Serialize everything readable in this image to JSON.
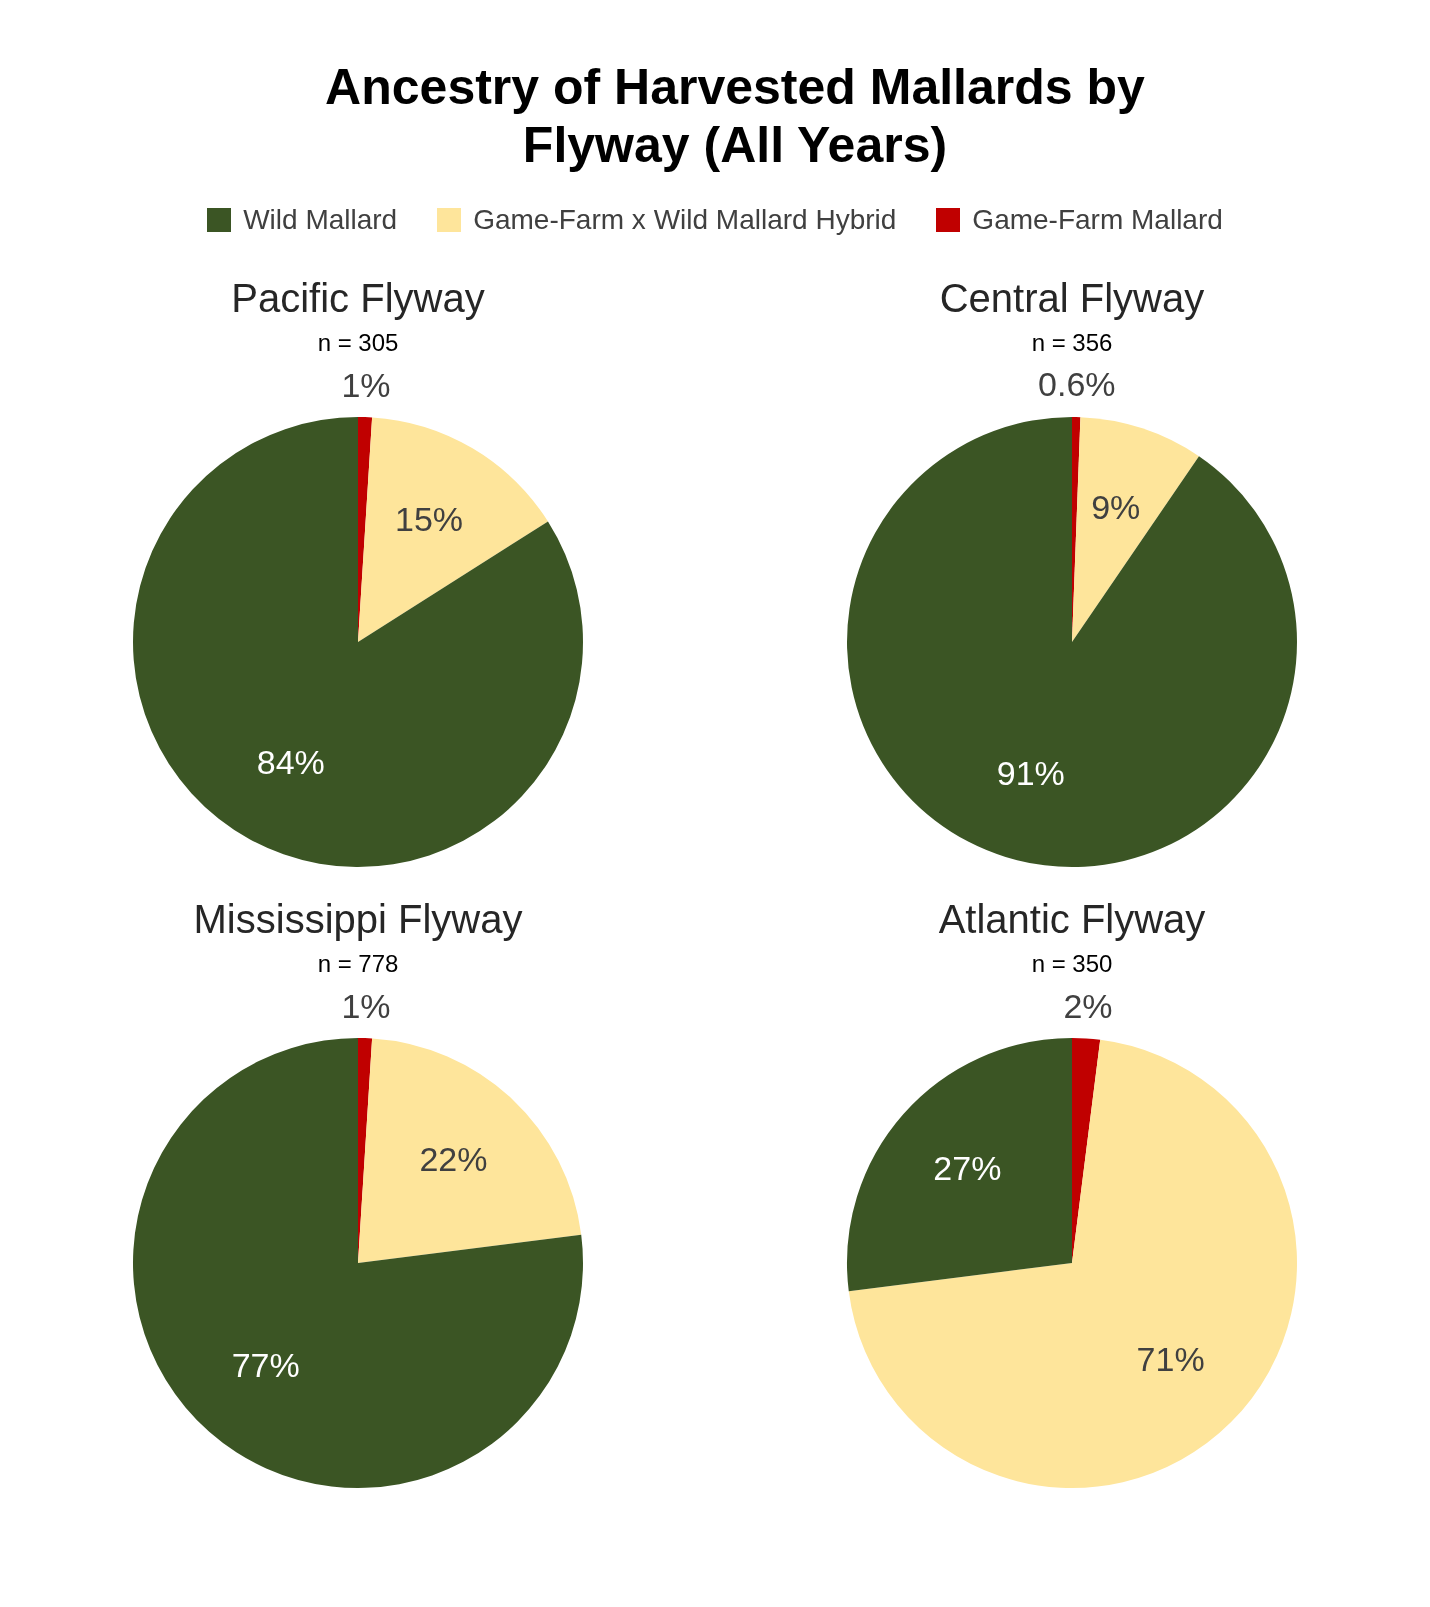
{
  "chart_data": [
    {
      "type": "other",
      "title": "Ancestry of Harvested Mallards by Flyway (All Years)"
    },
    {
      "type": "pie",
      "title": "Pacific Flyway",
      "subtitle": "n = 305",
      "categories": [
        "Wild Mallard",
        "Game-Farm x Wild Mallard Hybrid",
        "Game-Farm Mallard"
      ],
      "values": [
        84,
        15,
        1
      ],
      "value_labels": [
        "84%",
        "15%",
        "1%"
      ],
      "colors": [
        "#3b5524",
        "#fee59b",
        "#c00000"
      ],
      "legend": "top"
    },
    {
      "type": "pie",
      "title": "Central Flyway",
      "subtitle": "n = 356",
      "categories": [
        null,
        null,
        null
      ],
      "values": [
        91,
        9,
        0.6
      ],
      "value_labels": [
        "91%",
        "9%",
        "0.6%"
      ],
      "colors": [
        "#3b5524",
        "#fee59b",
        "#c00000"
      ]
    },
    {
      "type": "pie",
      "title": "Mississippi Flyway",
      "subtitle": "n = 778",
      "categories": [
        null,
        null,
        null
      ],
      "values": [
        77,
        22,
        1
      ],
      "value_labels": [
        "77%",
        "22%",
        "1%"
      ],
      "colors": [
        "#3b5524",
        "#fee59b",
        "#c00000"
      ]
    },
    {
      "type": "pie",
      "title": "Atlantic Flyway",
      "subtitle": "n = 350",
      "categories": [
        null,
        null,
        null
      ],
      "values": [
        27,
        71,
        2
      ],
      "value_labels": [
        "27%",
        "71%",
        "2%"
      ],
      "colors": [
        "#3b5524",
        "#fee59b",
        "#c00000"
      ]
    }
  ]
}
